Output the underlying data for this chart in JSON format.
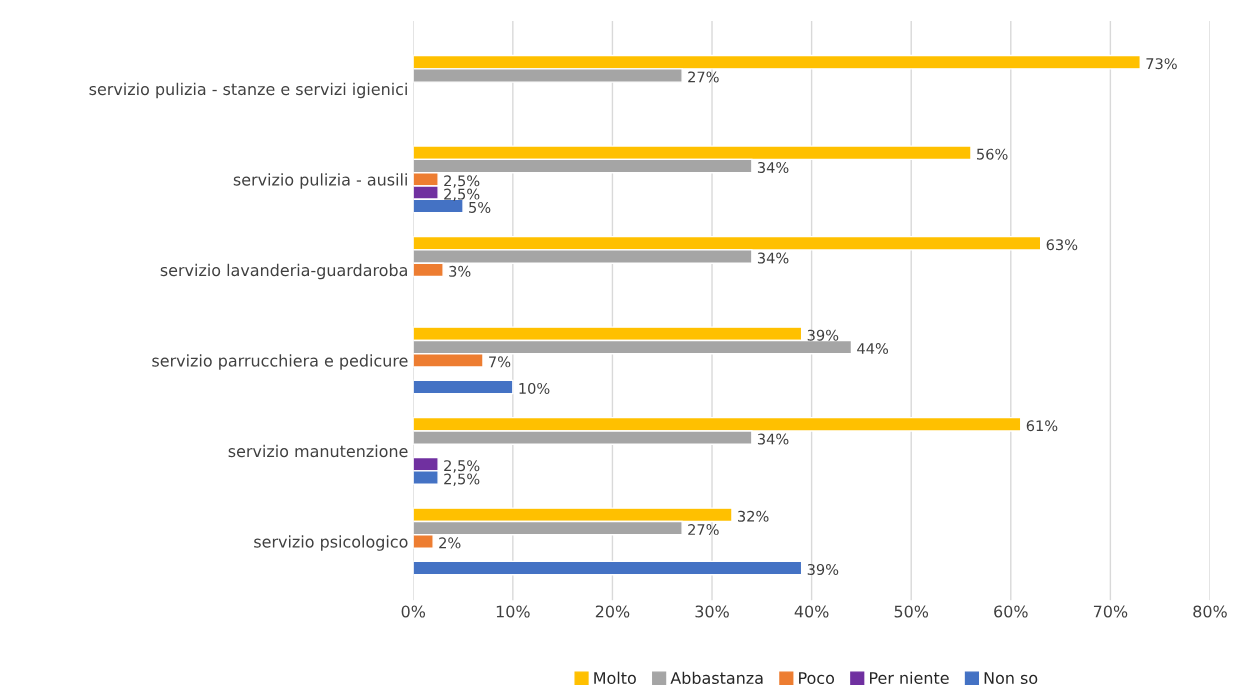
{
  "chart_data": {
    "type": "bar",
    "orientation": "horizontal",
    "categories": [
      "servizio pulizia - stanze e servizi igienici",
      "servizio pulizia - ausili",
      "servizio lavanderia-guardaroba",
      "servizio parrucchiera e pedicure",
      "servizio manutenzione",
      "servizio psicologico"
    ],
    "series": [
      {
        "name": "Molto",
        "color": "#ffc000",
        "values": [
          73,
          56,
          63,
          39,
          61,
          32
        ],
        "value_labels": [
          "73%",
          "56%",
          "63%",
          "39%",
          "61%",
          "32%"
        ]
      },
      {
        "name": "Abbastanza",
        "color": "#a5a5a5",
        "values": [
          27,
          34,
          34,
          44,
          34,
          27
        ],
        "value_labels": [
          "27%",
          "34%",
          "34%",
          "44%",
          "34%",
          "27%"
        ]
      },
      {
        "name": "Poco",
        "color": "#ed7d31",
        "values": [
          null,
          2.5,
          3,
          7,
          null,
          2
        ],
        "value_labels": [
          null,
          "2,5%",
          "3%",
          "7%",
          null,
          "2%"
        ]
      },
      {
        "name": "Per niente",
        "color": "#7030a0",
        "values": [
          null,
          2.5,
          null,
          null,
          2.5,
          null
        ],
        "value_labels": [
          null,
          "2,5%",
          null,
          null,
          "2,5%",
          null
        ]
      },
      {
        "name": "Non so",
        "color": "#4472c4",
        "values": [
          null,
          5,
          null,
          10,
          2.5,
          39
        ],
        "value_labels": [
          null,
          "5%",
          null,
          "10%",
          "2,5%",
          "39%"
        ]
      }
    ],
    "xlim": [
      0,
      80
    ],
    "xticks": [
      {
        "value": 0,
        "label": "0%"
      },
      {
        "value": 10,
        "label": "10%"
      },
      {
        "value": 20,
        "label": "20%"
      },
      {
        "value": 30,
        "label": "30%"
      },
      {
        "value": 40,
        "label": "40%"
      },
      {
        "value": 50,
        "label": "50%"
      },
      {
        "value": 60,
        "label": "60%"
      },
      {
        "value": 70,
        "label": "70%"
      },
      {
        "value": 80,
        "label": "80%"
      }
    ],
    "grid": "x",
    "legend": "bottom"
  }
}
